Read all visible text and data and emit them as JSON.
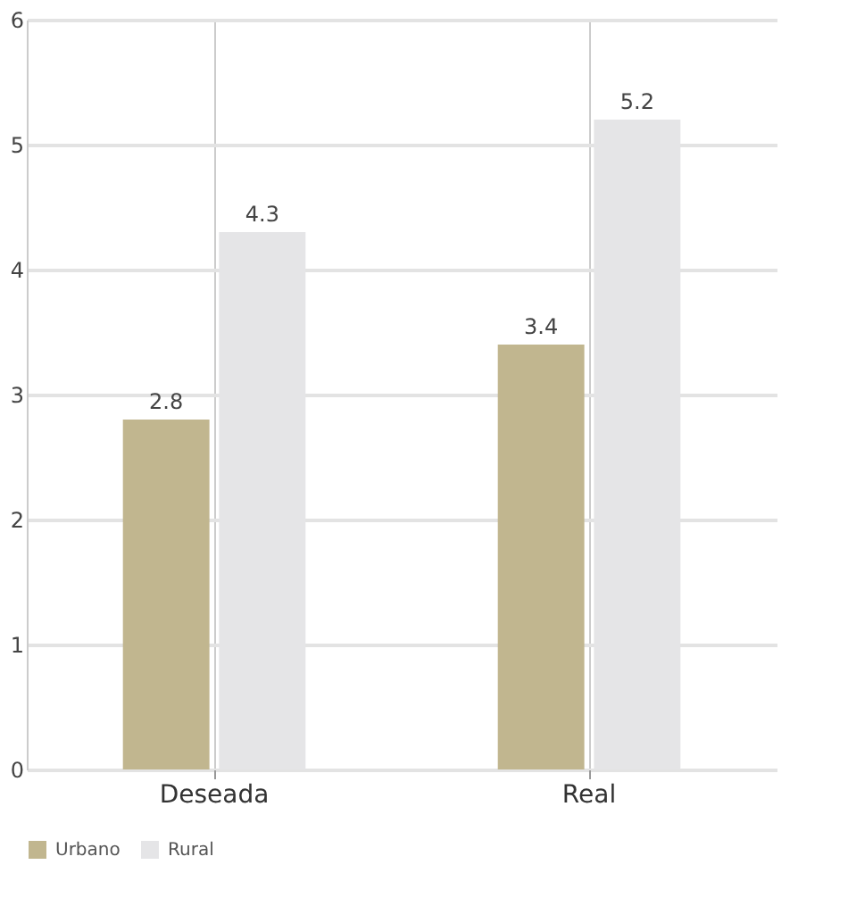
{
  "chart_data": {
    "type": "bar",
    "categories": [
      "Deseada",
      "Real"
    ],
    "series": [
      {
        "name": "Urbano",
        "color": "#c1b68f",
        "values": [
          2.8,
          3.4
        ]
      },
      {
        "name": "Rural",
        "color": "#e5e5e7",
        "values": [
          4.3,
          5.2
        ]
      }
    ],
    "ylim": [
      0,
      6
    ],
    "yticks": [
      0,
      1,
      2,
      3,
      4,
      5,
      6
    ],
    "grid": true,
    "legend": "bottom",
    "data_labels": true
  }
}
